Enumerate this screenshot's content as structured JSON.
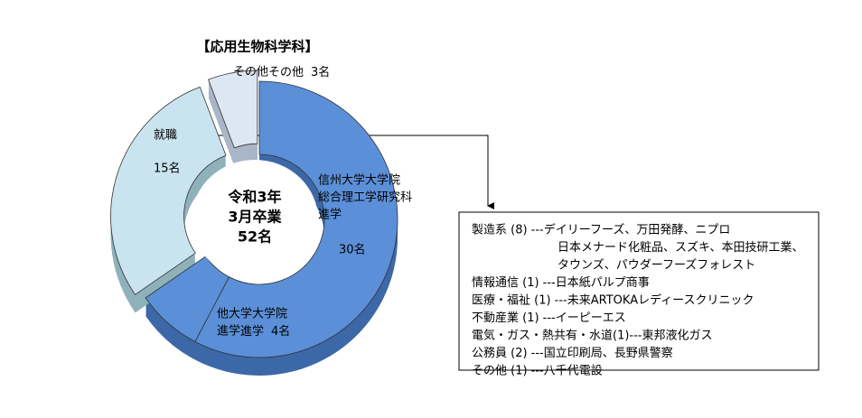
{
  "chart_data": {
    "type": "donut3d",
    "title": "【応用生物科学科】",
    "center_text": [
      "令和3年",
      "3月卒業",
      "52名"
    ],
    "categories": [
      [
        "信州大学大学院",
        "総合理工学研究科",
        "進学"
      ],
      [
        "他大学大学院",
        "進学"
      ],
      [
        "就職"
      ],
      [
        "その他"
      ]
    ],
    "values": [
      30,
      4,
      15,
      3
    ],
    "value_labels": [
      "30名",
      "4名",
      "15名",
      "3名"
    ],
    "colors": [
      "#5b8fd8",
      "#5b8fd8",
      "#c9e4ee",
      "#dde6f3"
    ],
    "side_colors": [
      "#3d68a8",
      "#3d68a8",
      "#8fb1ba",
      "#a9b6c8"
    ],
    "details": [
      [
        "製造系 (8) ---デイリーフーズ、万田発酵、ニプロ",
        "日本メナード化粧品、スズキ、本田技研工業、",
        "タウンズ、パウダーフーズフォレスト"
      ],
      [
        "情報通信 (1) ---日本紙パルプ商事"
      ],
      [
        "医療・福祉 (1) ---未来ARTOKAレディースクリニック"
      ],
      [
        "不動産業 (1) ---イーピーエス"
      ],
      [
        "電気・ガス・熱共有・水道(1)---東邦液化ガス"
      ],
      [
        "公務員 (2) ---国立印刷局、長野県警察"
      ],
      [
        "その他 (1) ---八千代電設"
      ]
    ]
  }
}
